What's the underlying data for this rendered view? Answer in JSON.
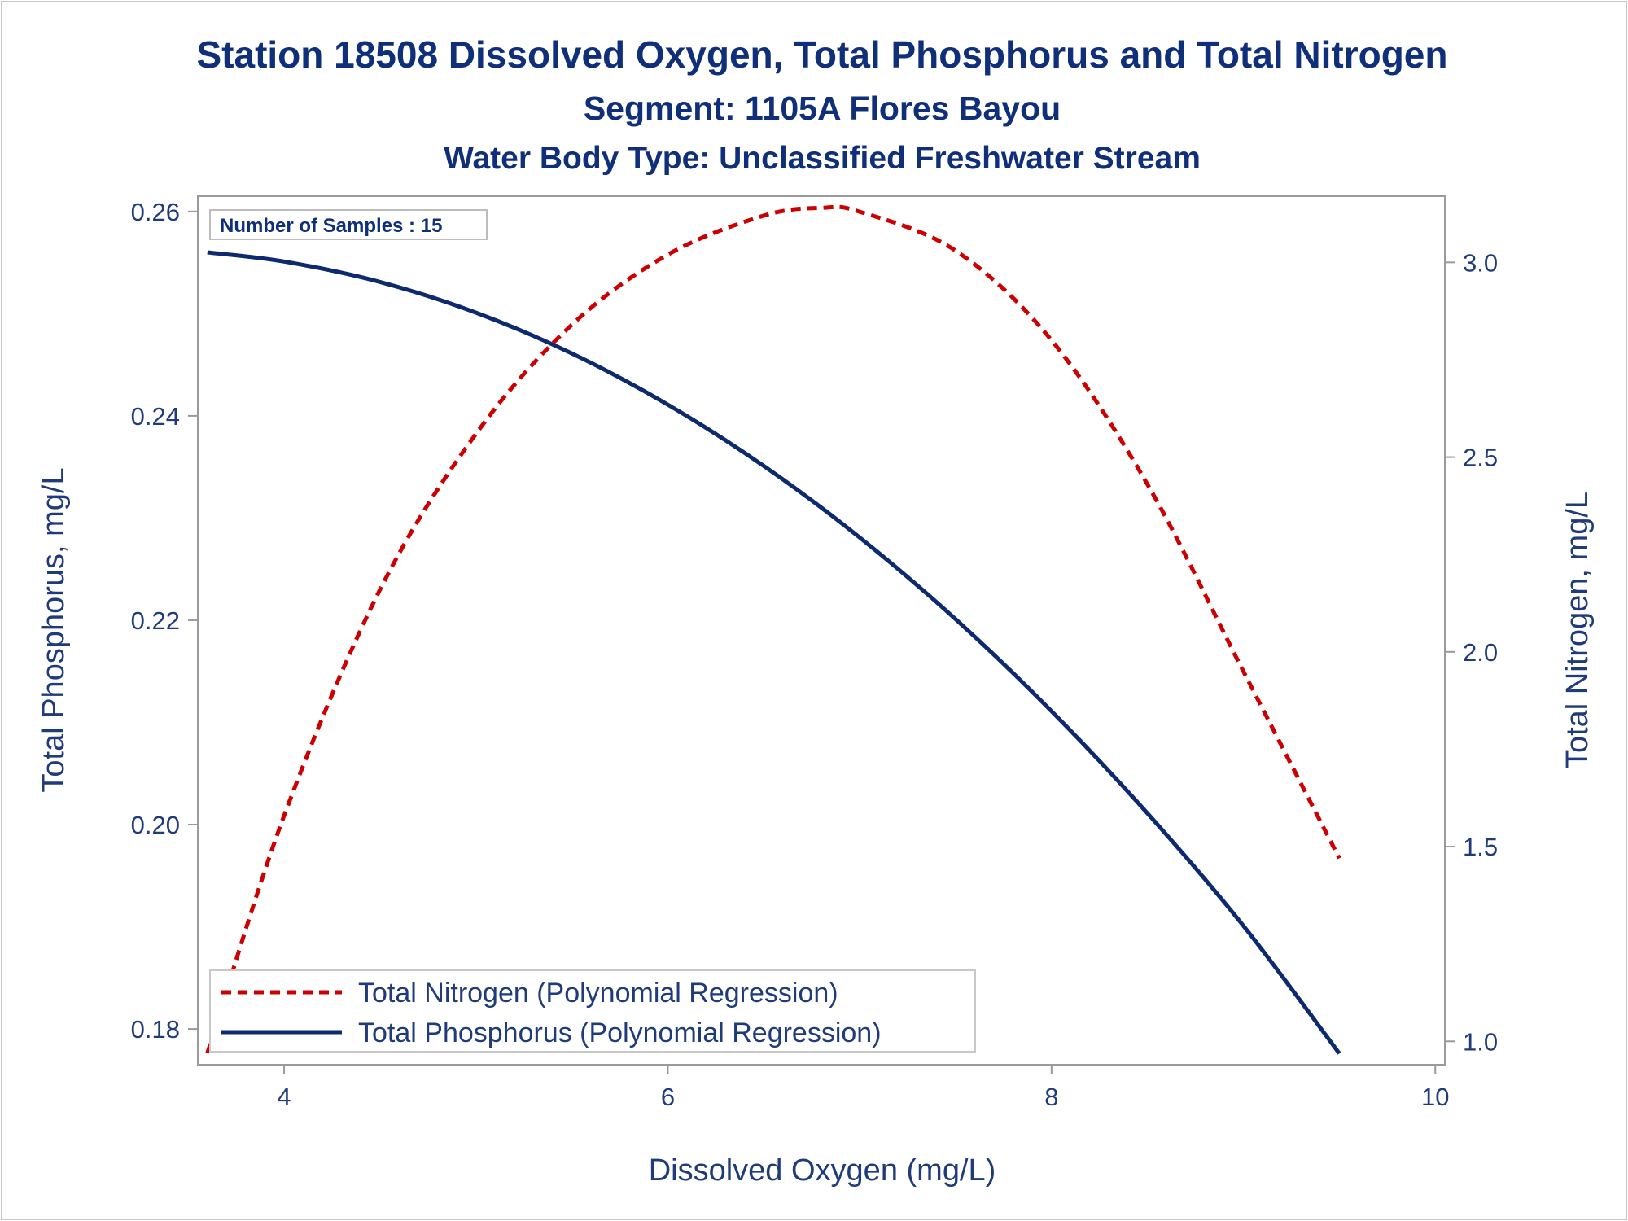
{
  "chart_data": {
    "type": "line",
    "title": "Station 18508  Dissolved Oxygen, Total Phosphorus and Total Nitrogen",
    "subtitle": "Segment: 1105A  Flores Bayou",
    "subtitle2": "Water Body Type: Unclassified Freshwater Stream",
    "xlabel": "Dissolved Oxygen (mg/L)",
    "ylabel_left": "Total Phosphorus, mg/L",
    "ylabel_right": "Total Nitrogen, mg/L",
    "xlim": [
      3.55,
      10.05
    ],
    "ylim_left": [
      0.1765,
      0.2615
    ],
    "ylim_right": [
      0.94,
      3.17
    ],
    "x_ticks": [
      4,
      6,
      8,
      10
    ],
    "y_left_ticks": [
      0.18,
      0.2,
      0.22,
      0.24,
      0.26
    ],
    "y_right_ticks": [
      1.0,
      1.5,
      2.0,
      2.5,
      3.0
    ],
    "inset_note": "Number of Samples : 15",
    "legend_position": "bottom-left",
    "series": [
      {
        "name": "Total Nitrogen (Polynomial Regression)",
        "axis": "right",
        "style": "dashed",
        "color": "#cc0000",
        "x": [
          3.6,
          4.0,
          4.5,
          5.0,
          5.5,
          6.0,
          6.5,
          6.8,
          7.0,
          7.5,
          8.0,
          8.5,
          9.0,
          9.5
        ],
        "values": [
          0.97,
          1.58,
          2.16,
          2.56,
          2.84,
          3.02,
          3.12,
          3.14,
          3.13,
          3.03,
          2.8,
          2.43,
          1.95,
          1.47
        ]
      },
      {
        "name": "Total Phosphorus (Polynomial Regression)",
        "axis": "left",
        "style": "solid",
        "color": "#0d2a6e",
        "x": [
          3.6,
          4.0,
          4.5,
          5.0,
          5.5,
          6.0,
          6.5,
          7.0,
          7.5,
          8.0,
          8.5,
          9.0,
          9.5
        ],
        "values": [
          0.256,
          0.2551,
          0.2531,
          0.2501,
          0.2461,
          0.2411,
          0.2351,
          0.2281,
          0.2201,
          0.2111,
          0.2011,
          0.1901,
          0.1776
        ]
      }
    ]
  }
}
